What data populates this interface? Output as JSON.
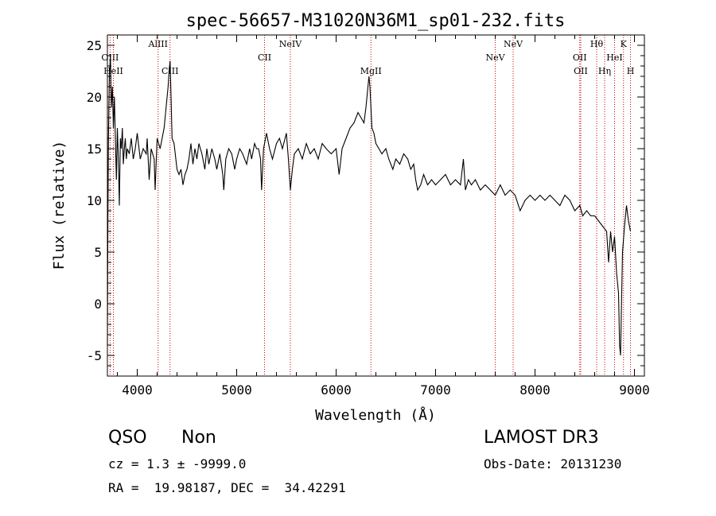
{
  "chart_data": {
    "type": "line",
    "title": "spec-56657-M31020N36M1_sp01-232.fits",
    "xlabel": "Wavelength (Å)",
    "ylabel": "Flux (relative)",
    "xlim": [
      3700,
      9100
    ],
    "ylim": [
      -7,
      26
    ],
    "xticks": [
      4000,
      5000,
      6000,
      7000,
      8000,
      9000
    ],
    "yticks": [
      -5,
      0,
      5,
      10,
      15,
      20,
      25
    ],
    "grid": false,
    "series": [
      {
        "name": "flux",
        "points": [
          [
            3700,
            -4
          ],
          [
            3705,
            8
          ],
          [
            3710,
            16
          ],
          [
            3720,
            22
          ],
          [
            3730,
            24
          ],
          [
            3740,
            19
          ],
          [
            3750,
            21
          ],
          [
            3760,
            17
          ],
          [
            3770,
            20
          ],
          [
            3780,
            16
          ],
          [
            3790,
            12
          ],
          [
            3800,
            17
          ],
          [
            3810,
            14
          ],
          [
            3820,
            9.5
          ],
          [
            3830,
            16
          ],
          [
            3840,
            15
          ],
          [
            3850,
            17
          ],
          [
            3860,
            13.5
          ],
          [
            3870,
            15
          ],
          [
            3880,
            16
          ],
          [
            3890,
            14
          ],
          [
            3900,
            15
          ],
          [
            3920,
            14.5
          ],
          [
            3940,
            16
          ],
          [
            3960,
            14
          ],
          [
            3980,
            15
          ],
          [
            4000,
            16.5
          ],
          [
            4030,
            14
          ],
          [
            4060,
            15
          ],
          [
            4090,
            14.5
          ],
          [
            4100,
            16
          ],
          [
            4120,
            12
          ],
          [
            4140,
            15
          ],
          [
            4170,
            14
          ],
          [
            4180,
            11
          ],
          [
            4200,
            16
          ],
          [
            4230,
            15
          ],
          [
            4250,
            16
          ],
          [
            4270,
            17
          ],
          [
            4290,
            19
          ],
          [
            4310,
            21
          ],
          [
            4320,
            22.5
          ],
          [
            4330,
            23.5
          ],
          [
            4340,
            20
          ],
          [
            4350,
            16
          ],
          [
            4370,
            15.5
          ],
          [
            4400,
            13
          ],
          [
            4420,
            12.5
          ],
          [
            4440,
            13
          ],
          [
            4460,
            11.5
          ],
          [
            4480,
            12.5
          ],
          [
            4500,
            13
          ],
          [
            4520,
            14
          ],
          [
            4540,
            15.5
          ],
          [
            4560,
            13.5
          ],
          [
            4580,
            15
          ],
          [
            4600,
            14
          ],
          [
            4620,
            15.5
          ],
          [
            4650,
            14.5
          ],
          [
            4680,
            13
          ],
          [
            4700,
            15
          ],
          [
            4720,
            13.5
          ],
          [
            4750,
            15
          ],
          [
            4780,
            14
          ],
          [
            4800,
            13
          ],
          [
            4830,
            14.5
          ],
          [
            4860,
            12.5
          ],
          [
            4870,
            11
          ],
          [
            4890,
            14
          ],
          [
            4920,
            15
          ],
          [
            4950,
            14.5
          ],
          [
            4980,
            13
          ],
          [
            5000,
            14
          ],
          [
            5030,
            15
          ],
          [
            5060,
            14.5
          ],
          [
            5100,
            13.5
          ],
          [
            5130,
            15
          ],
          [
            5150,
            14
          ],
          [
            5180,
            15.5
          ],
          [
            5200,
            15
          ],
          [
            5220,
            15
          ],
          [
            5240,
            14
          ],
          [
            5250,
            11
          ],
          [
            5270,
            15
          ],
          [
            5300,
            16.5
          ],
          [
            5330,
            15
          ],
          [
            5360,
            14
          ],
          [
            5400,
            15.5
          ],
          [
            5430,
            16
          ],
          [
            5460,
            15
          ],
          [
            5500,
            16.5
          ],
          [
            5520,
            14
          ],
          [
            5540,
            11
          ],
          [
            5560,
            13
          ],
          [
            5580,
            14.5
          ],
          [
            5620,
            15
          ],
          [
            5660,
            14
          ],
          [
            5700,
            15.5
          ],
          [
            5740,
            14.5
          ],
          [
            5780,
            15
          ],
          [
            5820,
            14
          ],
          [
            5860,
            15.5
          ],
          [
            5900,
            15
          ],
          [
            5950,
            14.5
          ],
          [
            6000,
            15
          ],
          [
            6030,
            12.5
          ],
          [
            6060,
            15
          ],
          [
            6100,
            16
          ],
          [
            6140,
            17
          ],
          [
            6180,
            17.5
          ],
          [
            6220,
            18.5
          ],
          [
            6250,
            18
          ],
          [
            6280,
            17.5
          ],
          [
            6300,
            19
          ],
          [
            6320,
            21
          ],
          [
            6330,
            22
          ],
          [
            6340,
            21
          ],
          [
            6360,
            17
          ],
          [
            6380,
            16.5
          ],
          [
            6400,
            15.5
          ],
          [
            6430,
            15
          ],
          [
            6460,
            14.5
          ],
          [
            6500,
            15
          ],
          [
            6530,
            14
          ],
          [
            6570,
            13
          ],
          [
            6600,
            14
          ],
          [
            6640,
            13.5
          ],
          [
            6680,
            14.5
          ],
          [
            6720,
            14
          ],
          [
            6750,
            13
          ],
          [
            6780,
            13.5
          ],
          [
            6800,
            12
          ],
          [
            6820,
            11
          ],
          [
            6850,
            11.5
          ],
          [
            6880,
            12.5
          ],
          [
            6920,
            11.5
          ],
          [
            6960,
            12
          ],
          [
            7000,
            11.5
          ],
          [
            7050,
            12
          ],
          [
            7100,
            12.5
          ],
          [
            7150,
            11.5
          ],
          [
            7200,
            12
          ],
          [
            7250,
            11.5
          ],
          [
            7280,
            14
          ],
          [
            7300,
            11
          ],
          [
            7330,
            12
          ],
          [
            7360,
            11.5
          ],
          [
            7400,
            12
          ],
          [
            7450,
            11
          ],
          [
            7500,
            11.5
          ],
          [
            7550,
            11
          ],
          [
            7600,
            10.5
          ],
          [
            7650,
            11.5
          ],
          [
            7700,
            10.5
          ],
          [
            7750,
            11
          ],
          [
            7800,
            10.5
          ],
          [
            7850,
            9
          ],
          [
            7900,
            10
          ],
          [
            7950,
            10.5
          ],
          [
            8000,
            10
          ],
          [
            8050,
            10.5
          ],
          [
            8100,
            10
          ],
          [
            8150,
            10.5
          ],
          [
            8200,
            10
          ],
          [
            8250,
            9.5
          ],
          [
            8300,
            10.5
          ],
          [
            8350,
            10
          ],
          [
            8400,
            9
          ],
          [
            8450,
            9.5
          ],
          [
            8480,
            8.5
          ],
          [
            8520,
            9
          ],
          [
            8560,
            8.5
          ],
          [
            8600,
            8.5
          ],
          [
            8640,
            8
          ],
          [
            8680,
            7.5
          ],
          [
            8720,
            7
          ],
          [
            8740,
            4
          ],
          [
            8760,
            7
          ],
          [
            8780,
            5
          ],
          [
            8800,
            6.5
          ],
          [
            8820,
            3
          ],
          [
            8840,
            1
          ],
          [
            8850,
            -4
          ],
          [
            8860,
            -5
          ],
          [
            8880,
            5
          ],
          [
            8900,
            7.5
          ],
          [
            8920,
            9.5
          ],
          [
            8940,
            8
          ],
          [
            8960,
            7
          ]
        ]
      }
    ],
    "lines": [
      {
        "label": "OIII",
        "x": 3727,
        "row": 1
      },
      {
        "label": "HeII",
        "x": 3760,
        "row": 2
      },
      {
        "label": "AlIII",
        "x": 4210,
        "row": 0
      },
      {
        "label": "CIII",
        "x": 4330,
        "row": 2
      },
      {
        "label": "CII",
        "x": 5280,
        "row": 1
      },
      {
        "label": "NeIV",
        "x": 5540,
        "row": 0
      },
      {
        "label": "MgII",
        "x": 6350,
        "row": 2
      },
      {
        "label": "NeV",
        "x": 7600,
        "row": 1
      },
      {
        "label": "NeV",
        "x": 7780,
        "row": 0
      },
      {
        "label": "OII",
        "x": 8450,
        "row": 1
      },
      {
        "label": "OII",
        "x": 8460,
        "row": 2
      },
      {
        "label": "Hθ",
        "x": 8620,
        "row": 0
      },
      {
        "label": "Hη",
        "x": 8700,
        "row": 2
      },
      {
        "label": "HeI",
        "x": 8800,
        "row": 1
      },
      {
        "label": "K",
        "x": 8890,
        "row": 0
      },
      {
        "label": "H",
        "x": 8960,
        "row": 2
      }
    ]
  },
  "info": {
    "classification": "QSO",
    "subclass": "Non",
    "cz_line": "cz = 1.3 ± -9999.0",
    "coords_line": "RA =  19.98187, DEC =  34.42291",
    "survey": "LAMOST DR3",
    "obs_date": "Obs-Date: 20131230"
  },
  "colors": {
    "axis": "#000000",
    "spectrum": "#000000",
    "line_markers": "#cc0000"
  }
}
